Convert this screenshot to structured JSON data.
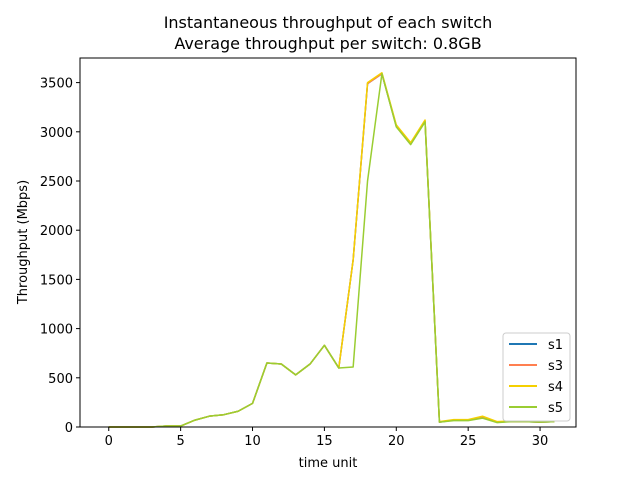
{
  "chart_data": {
    "type": "line",
    "title": "Instantaneous throughput of each switch",
    "subtitle": "Average throughput per switch: 0.8GB",
    "xlabel": "time unit",
    "ylabel": "Throughput (Mbps)",
    "xlim": [
      -2,
      32.5
    ],
    "ylim": [
      0,
      3750
    ],
    "xticks": [
      0,
      5,
      10,
      15,
      20,
      25,
      30
    ],
    "yticks": [
      0,
      500,
      1000,
      1500,
      2000,
      2500,
      3000,
      3500
    ],
    "grid": false,
    "legend_position": "lower-right",
    "x": [
      0,
      1,
      2,
      3,
      4,
      5,
      6,
      7,
      8,
      9,
      10,
      11,
      12,
      13,
      14,
      15,
      16,
      17,
      18,
      19,
      20,
      21,
      22,
      23,
      24,
      25,
      26,
      27,
      28,
      29,
      30,
      31
    ],
    "series": [
      {
        "name": "s1",
        "color": "#1f77b4",
        "values": [
          0,
          0,
          0,
          0,
          10,
          10,
          70,
          110,
          125,
          160,
          240,
          650,
          640,
          530,
          640,
          830,
          600,
          1700,
          3490,
          3590,
          3060,
          2880,
          3110,
          50,
          70,
          70,
          100,
          50,
          55,
          55,
          50,
          55
        ]
      },
      {
        "name": "s3",
        "color": "#ff7f50",
        "values": [
          0,
          0,
          0,
          0,
          10,
          10,
          70,
          110,
          125,
          160,
          240,
          650,
          640,
          530,
          640,
          830,
          600,
          1700,
          3490,
          3590,
          3060,
          2880,
          3110,
          50,
          70,
          70,
          100,
          50,
          55,
          55,
          50,
          55
        ]
      },
      {
        "name": "s4",
        "color": "#f5d000",
        "values": [
          0,
          0,
          0,
          0,
          10,
          10,
          70,
          110,
          125,
          160,
          240,
          650,
          640,
          530,
          640,
          830,
          600,
          1700,
          3500,
          3600,
          3070,
          2890,
          3120,
          55,
          75,
          75,
          110,
          55,
          60,
          60,
          55,
          60
        ]
      },
      {
        "name": "s5",
        "color": "#9acd32",
        "values": [
          0,
          0,
          0,
          0,
          10,
          10,
          70,
          110,
          125,
          160,
          240,
          650,
          640,
          530,
          640,
          830,
          600,
          610,
          2500,
          3590,
          3050,
          2870,
          3100,
          50,
          65,
          65,
          90,
          45,
          55,
          55,
          50,
          55
        ]
      }
    ]
  }
}
